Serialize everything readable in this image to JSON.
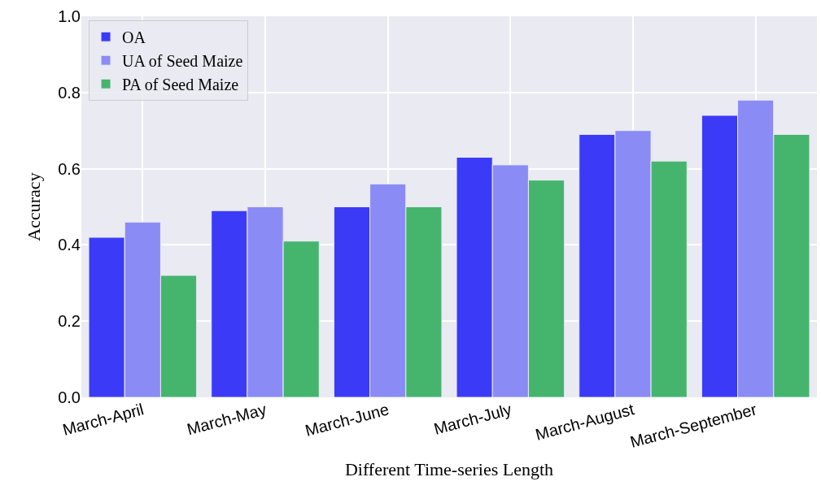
{
  "chart_data": {
    "type": "bar",
    "xlabel": "Different Time-series Length",
    "ylabel": "Accuracy",
    "categories": [
      "March-April",
      "March-May",
      "March-June",
      "March-July",
      "March-August",
      "March-September"
    ],
    "series": [
      {
        "name": "OA",
        "color": "#3b3bf7",
        "values": [
          0.42,
          0.49,
          0.5,
          0.63,
          0.69,
          0.74
        ]
      },
      {
        "name": "UA of Seed Maize",
        "color": "#8b8bf6",
        "values": [
          0.46,
          0.5,
          0.56,
          0.61,
          0.7,
          0.78
        ]
      },
      {
        "name": "PA of Seed Maize",
        "color": "#45b56e",
        "values": [
          0.32,
          0.41,
          0.5,
          0.57,
          0.62,
          0.69
        ]
      }
    ],
    "ylim": [
      0,
      1.0
    ],
    "yticks": [
      {
        "value": 0,
        "label": "0.0"
      },
      0.2,
      0.4,
      0.6,
      0.8,
      {
        "value": 1.0,
        "label": "1.0"
      }
    ],
    "grid": true,
    "legend": "top left"
  }
}
